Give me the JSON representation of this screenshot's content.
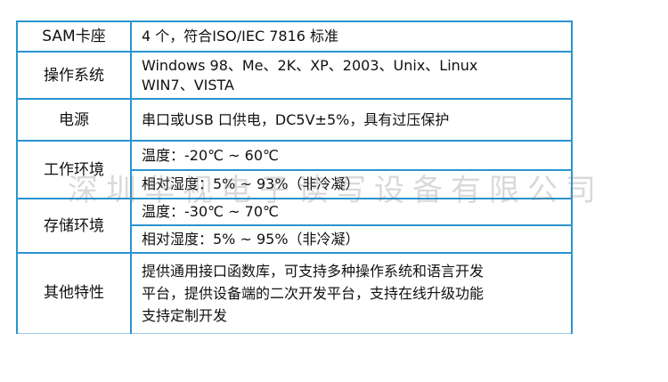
{
  "spec_table": {
    "rows": [
      {
        "label": "SAM卡座",
        "values": [
          "4 个，符合ISO/IEC 7816 标准"
        ]
      },
      {
        "label": "操作系统",
        "values": [
          "Windows 98、Me、2K、XP、2003、Unix、Linux",
          "WIN7、VISTA"
        ]
      },
      {
        "label": "电源",
        "values": [
          "串口或USB 口供电，DC5V±5%，具有过压保护"
        ]
      },
      {
        "label": "工作环境",
        "values": [
          "温度：-20℃ ~ 60℃",
          "相对湿度：5% ~ 93%（非冷凝）"
        ]
      },
      {
        "label": "存储环境",
        "values": [
          "温度：-30℃ ~ 70℃",
          "相对湿度：5% ~ 95%（非冷凝）"
        ]
      },
      {
        "label": "其他特性",
        "values": [
          "提供通用接口函数库，可支持多种操作系统和语言开发",
          "平台，提供设备端的二次开发平台，支持在线升级功能",
          "支持定制开发"
        ]
      }
    ]
  },
  "watermark": "深圳华视电子读写设备有限公司",
  "colors": {
    "border": "#2a94d0"
  }
}
